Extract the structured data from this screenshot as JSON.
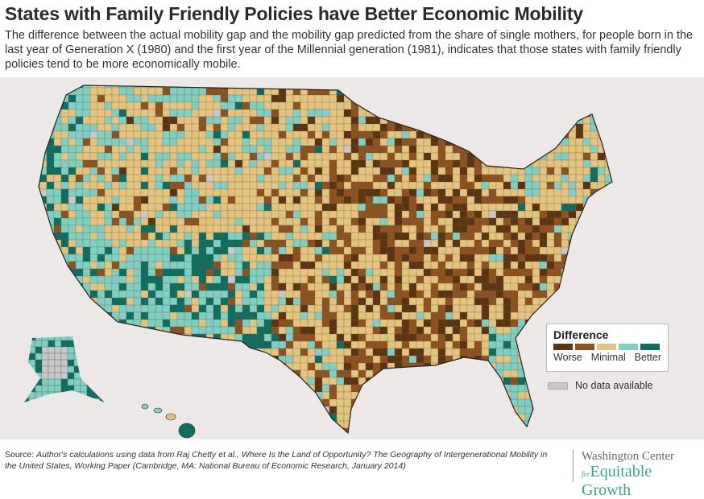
{
  "header": {
    "title": "States with Family Friendly Policies have Better Economic Mobility",
    "subtitle": "The difference between the actual mobility gap and the mobility gap predicted from the share of single mothers, for people born in the last year of Generation X (1980) and the first year of the Millennial generation (1981), indicates that those states with family friendly policies tend to be more economically mobile."
  },
  "map": {
    "type": "choropleth",
    "geography": "US counties",
    "colors": {
      "worse": "#5b3412",
      "worse_mid": "#8c521f",
      "minimal": "#e3c47f",
      "better_mid": "#7fd0c2",
      "better": "#0f6e62",
      "no_data": "#c8c8c8",
      "borders": "#333333",
      "background": "#ece8e7"
    }
  },
  "legend": {
    "title": "Difference",
    "swatches": [
      "#5b3412",
      "#8c521f",
      "#e3c47f",
      "#7fd0c2",
      "#0f6e62"
    ],
    "label_left": "Worse",
    "label_mid": "Minimal",
    "label_right": "Better",
    "no_data_label": "No data available"
  },
  "footer": {
    "source_prefix": "Source: ",
    "source_text": "Author's calculations using data from Raj Chetty et al., Where Is the Land of Opportunity? The Geography of Intergenerational Mobility in the United States, Working Paper (Cambridge, MA: National Bureau of Economic Research, January 2014)",
    "logo_line1": "Washington Center",
    "logo_for": "for",
    "logo_line2": "Equitable Growth"
  }
}
